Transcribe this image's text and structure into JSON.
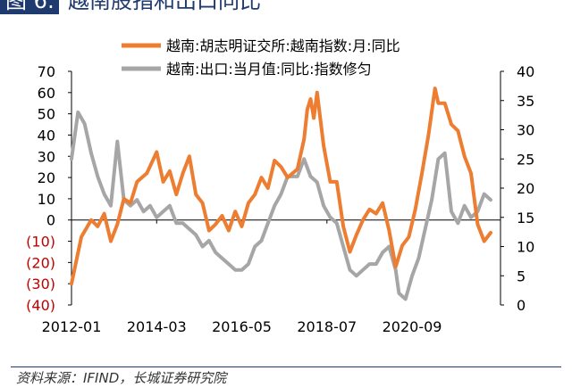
{
  "header": {
    "badge": "图 6:",
    "title": "越南股指和出口同比"
  },
  "footer": {
    "source": "资料来源：IFIND，长城证券研究院"
  },
  "colors": {
    "series1": "#ed7d31",
    "series2": "#a6a6a6",
    "negative_ticks": "#c00000"
  },
  "chart_data": {
    "type": "line",
    "x_tick_labels": [
      "2012-01",
      "2014-03",
      "2016-05",
      "2018-07",
      "2020-09"
    ],
    "x_tick_positions": [
      "2012-01",
      "2014-03",
      "2016-05",
      "2018-07",
      "2020-09"
    ],
    "x_range": [
      "2012-01",
      "2022-12"
    ],
    "y_left": {
      "ylim": [
        -40,
        70
      ],
      "ticks": [
        -40,
        -30,
        -20,
        -10,
        0,
        10,
        20,
        30,
        40,
        50,
        60,
        70
      ],
      "tick_labels": [
        "(40)",
        "(30)",
        "(20)",
        "(10)",
        "0",
        "10",
        "20",
        "30",
        "40",
        "50",
        "60",
        "70"
      ]
    },
    "y_right": {
      "ylim": [
        0,
        40
      ],
      "ticks": [
        0,
        5,
        10,
        15,
        20,
        25,
        30,
        35,
        40
      ],
      "tick_labels": [
        "0",
        "5",
        "10",
        "15",
        "20",
        "25",
        "30",
        "35",
        "40"
      ]
    },
    "series": [
      {
        "name": "越南:胡志明证交所:越南指数:月:同比",
        "axis": "left",
        "points": [
          [
            "2012-01",
            -30
          ],
          [
            "2012-04",
            -8
          ],
          [
            "2012-07",
            0
          ],
          [
            "2012-09",
            -3
          ],
          [
            "2012-11",
            3
          ],
          [
            "2013-01",
            -10
          ],
          [
            "2013-03",
            -2
          ],
          [
            "2013-05",
            10
          ],
          [
            "2013-07",
            8
          ],
          [
            "2013-09",
            18
          ],
          [
            "2013-12",
            22
          ],
          [
            "2014-03",
            32
          ],
          [
            "2014-05",
            18
          ],
          [
            "2014-07",
            23
          ],
          [
            "2014-09",
            12
          ],
          [
            "2014-11",
            22
          ],
          [
            "2015-01",
            30
          ],
          [
            "2015-03",
            12
          ],
          [
            "2015-05",
            8
          ],
          [
            "2015-07",
            -5
          ],
          [
            "2015-09",
            -2
          ],
          [
            "2015-11",
            2
          ],
          [
            "2016-01",
            -5
          ],
          [
            "2016-03",
            4
          ],
          [
            "2016-05",
            -3
          ],
          [
            "2016-07",
            8
          ],
          [
            "2016-09",
            12
          ],
          [
            "2016-11",
            20
          ],
          [
            "2017-01",
            15
          ],
          [
            "2017-03",
            28
          ],
          [
            "2017-05",
            25
          ],
          [
            "2017-07",
            20
          ],
          [
            "2017-10",
            24
          ],
          [
            "2017-12",
            38
          ],
          [
            "2018-01",
            52
          ],
          [
            "2018-02",
            57
          ],
          [
            "2018-03",
            48
          ],
          [
            "2018-04",
            60
          ],
          [
            "2018-06",
            35
          ],
          [
            "2018-08",
            18
          ],
          [
            "2018-10",
            18
          ],
          [
            "2018-12",
            -3
          ],
          [
            "2019-02",
            -15
          ],
          [
            "2019-04",
            -7
          ],
          [
            "2019-06",
            0
          ],
          [
            "2019-08",
            5
          ],
          [
            "2019-10",
            3
          ],
          [
            "2019-12",
            8
          ],
          [
            "2020-02",
            -5
          ],
          [
            "2020-04",
            -22
          ],
          [
            "2020-06",
            -12
          ],
          [
            "2020-08",
            -8
          ],
          [
            "2020-10",
            5
          ],
          [
            "2020-12",
            22
          ],
          [
            "2021-02",
            40
          ],
          [
            "2021-04",
            62
          ],
          [
            "2021-05",
            55
          ],
          [
            "2021-07",
            55
          ],
          [
            "2021-09",
            45
          ],
          [
            "2021-11",
            42
          ],
          [
            "2022-01",
            30
          ],
          [
            "2022-03",
            22
          ],
          [
            "2022-05",
            -2
          ],
          [
            "2022-07",
            -10
          ],
          [
            "2022-09",
            -6
          ]
        ]
      },
      {
        "name": "越南:出口:当月值:同比:指数修匀",
        "axis": "right",
        "points": [
          [
            "2012-01",
            25
          ],
          [
            "2012-03",
            33
          ],
          [
            "2012-05",
            31
          ],
          [
            "2012-07",
            26
          ],
          [
            "2012-09",
            22
          ],
          [
            "2012-11",
            19
          ],
          [
            "2013-01",
            17
          ],
          [
            "2013-03",
            28
          ],
          [
            "2013-05",
            18
          ],
          [
            "2013-07",
            17
          ],
          [
            "2013-09",
            18
          ],
          [
            "2013-11",
            16
          ],
          [
            "2014-01",
            17
          ],
          [
            "2014-03",
            15
          ],
          [
            "2014-05",
            16
          ],
          [
            "2014-07",
            17
          ],
          [
            "2014-09",
            14
          ],
          [
            "2014-11",
            14
          ],
          [
            "2015-01",
            13
          ],
          [
            "2015-03",
            12
          ],
          [
            "2015-05",
            10
          ],
          [
            "2015-07",
            11
          ],
          [
            "2015-09",
            9
          ],
          [
            "2015-11",
            8
          ],
          [
            "2016-01",
            7
          ],
          [
            "2016-03",
            6
          ],
          [
            "2016-05",
            6
          ],
          [
            "2016-07",
            7
          ],
          [
            "2016-09",
            10
          ],
          [
            "2016-11",
            11
          ],
          [
            "2017-01",
            14
          ],
          [
            "2017-03",
            17
          ],
          [
            "2017-05",
            19
          ],
          [
            "2017-07",
            22
          ],
          [
            "2017-10",
            22
          ],
          [
            "2017-12",
            25
          ],
          [
            "2018-02",
            22
          ],
          [
            "2018-04",
            21
          ],
          [
            "2018-06",
            17
          ],
          [
            "2018-08",
            15
          ],
          [
            "2018-10",
            14
          ],
          [
            "2018-12",
            10
          ],
          [
            "2019-02",
            6
          ],
          [
            "2019-04",
            5
          ],
          [
            "2019-06",
            6
          ],
          [
            "2019-08",
            7
          ],
          [
            "2019-10",
            7
          ],
          [
            "2019-12",
            9
          ],
          [
            "2020-02",
            10
          ],
          [
            "2020-04",
            6
          ],
          [
            "2020-05",
            2
          ],
          [
            "2020-07",
            1
          ],
          [
            "2020-09",
            5
          ],
          [
            "2020-11",
            8
          ],
          [
            "2021-01",
            13
          ],
          [
            "2021-03",
            18
          ],
          [
            "2021-05",
            25
          ],
          [
            "2021-07",
            26
          ],
          [
            "2021-09",
            16
          ],
          [
            "2021-11",
            14
          ],
          [
            "2022-01",
            17
          ],
          [
            "2022-03",
            15
          ],
          [
            "2022-05",
            16
          ],
          [
            "2022-07",
            19
          ],
          [
            "2022-09",
            18
          ]
        ]
      }
    ]
  }
}
